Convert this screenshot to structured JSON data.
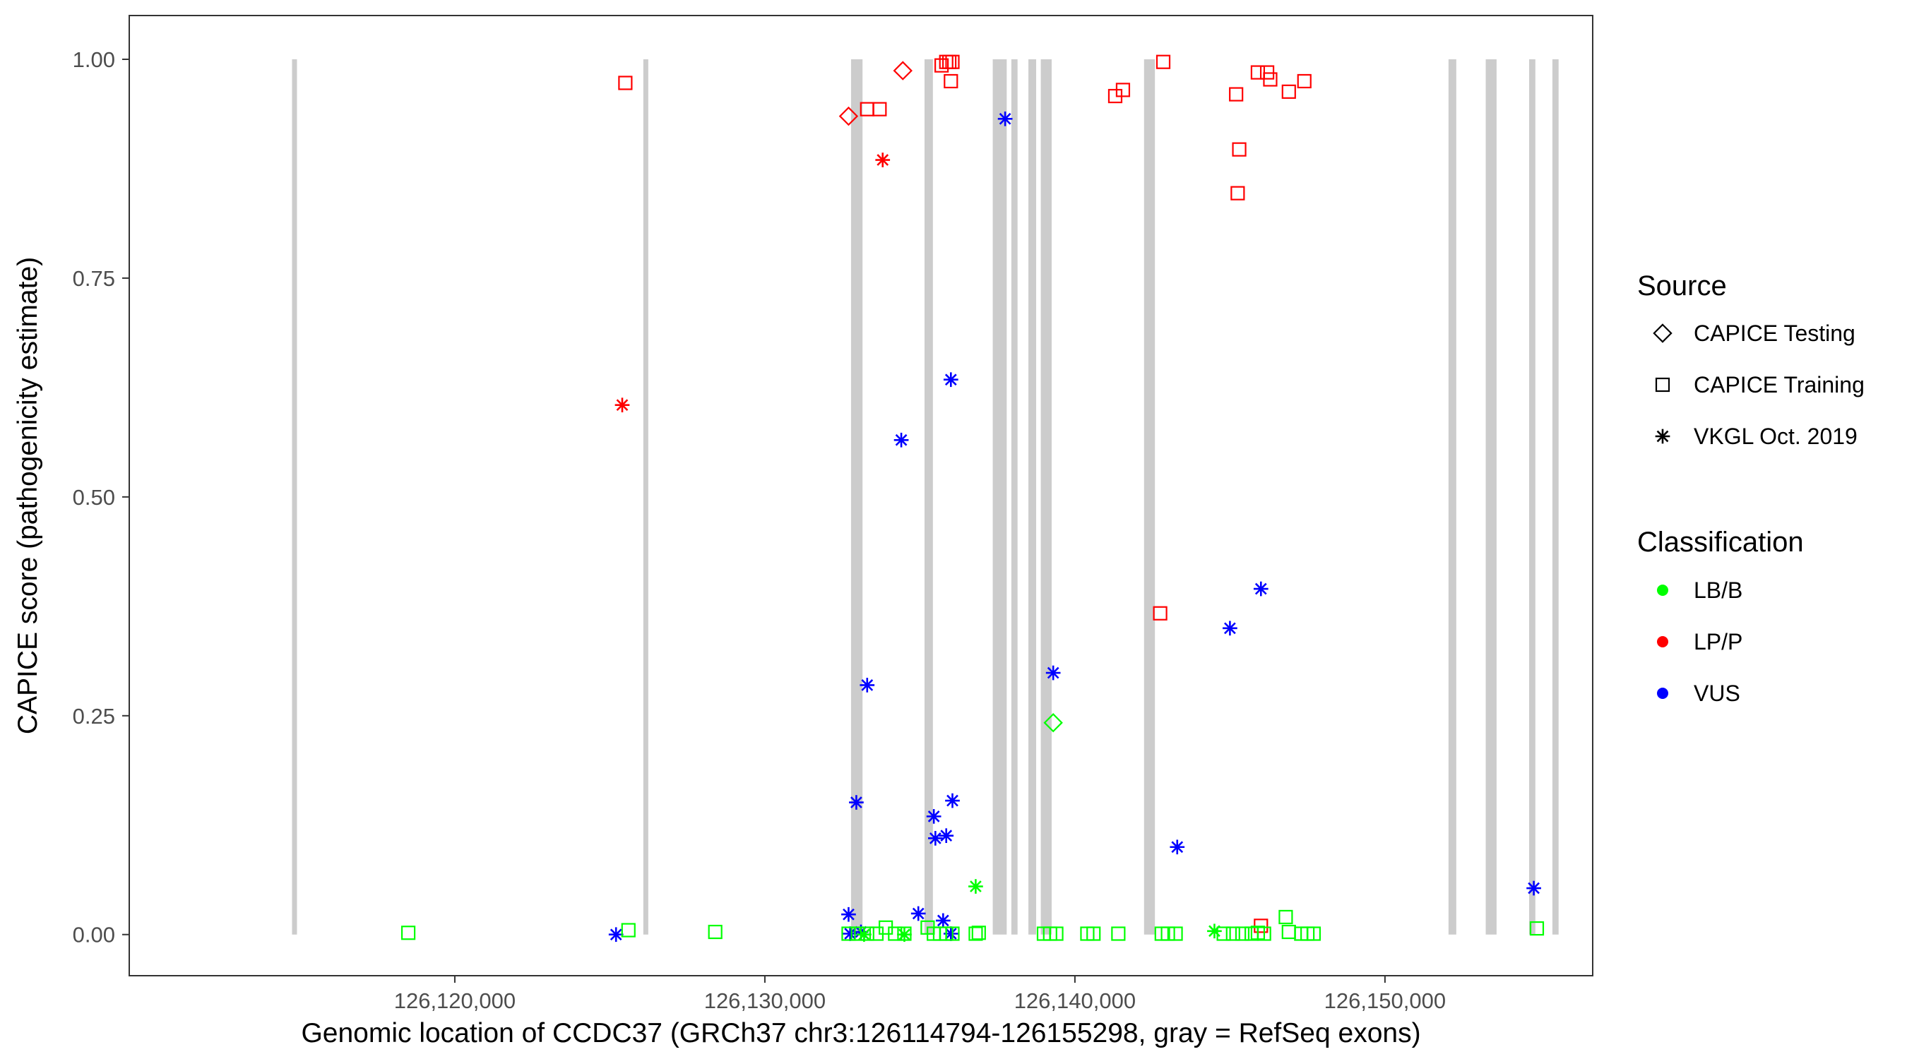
{
  "chart_data": {
    "type": "scatter",
    "xlabel": "Genomic location of CCDC37 (GRCh37 chr3:126114794-126155298, gray = RefSeq exons)",
    "ylabel": "CAPICE score (pathogenicity estimate)",
    "xlim": [
      126109500,
      126156700
    ],
    "ylim": [
      -0.047,
      1.05
    ],
    "x_ticks": [
      126120000,
      126130000,
      126140000,
      126150000
    ],
    "x_tick_labels": [
      "126,120,000",
      "126,130,000",
      "126,140,000",
      "126,150,000"
    ],
    "y_ticks": [
      0,
      0.25,
      0.5,
      0.75,
      1.0
    ],
    "y_tick_labels": [
      "0.00",
      "0.25",
      "0.50",
      "0.75",
      "1.00"
    ],
    "grid": false,
    "exons": [
      [
        126114750,
        126114900
      ],
      [
        126126080,
        126126230
      ],
      [
        126132780,
        126133150
      ],
      [
        126135150,
        126135420
      ],
      [
        126137350,
        126137800
      ],
      [
        126137950,
        126138150
      ],
      [
        126138500,
        126138750
      ],
      [
        126138900,
        126139250
      ],
      [
        126142230,
        126142580
      ],
      [
        126152050,
        126152300
      ],
      [
        126153250,
        126153600
      ],
      [
        126154650,
        126154850
      ],
      [
        126155400,
        126155600
      ]
    ],
    "legend": {
      "placement": "right",
      "source_title": "Source",
      "source_items": [
        {
          "label": "CAPICE Testing",
          "shape": "diamond"
        },
        {
          "label": "CAPICE Training",
          "shape": "square"
        },
        {
          "label": "VKGL Oct. 2019",
          "shape": "asterisk"
        }
      ],
      "class_title": "Classification",
      "class_items": [
        {
          "label": "LB/B",
          "color": "#00ff00"
        },
        {
          "label": "LP/P",
          "color": "#ff0000"
        },
        {
          "label": "VUS",
          "color": "#0000ff"
        }
      ]
    },
    "colors": {
      "LB/B": "#00ff00",
      "LP/P": "#ff0000",
      "VUS": "#0000ff",
      "exon": "#cccccc"
    },
    "series": [
      {
        "classification": "LP/P",
        "source": "CAPICE Training",
        "points": [
          [
            126125500,
            0.973
          ],
          [
            126133300,
            0.943
          ],
          [
            126133700,
            0.943
          ],
          [
            126135700,
            0.993
          ],
          [
            126135850,
            0.997
          ],
          [
            126135950,
            0.997
          ],
          [
            126136050,
            0.997
          ],
          [
            126136000,
            0.975
          ],
          [
            126141300,
            0.958
          ],
          [
            126141550,
            0.965
          ],
          [
            126142850,
            0.997
          ],
          [
            126145200,
            0.96
          ],
          [
            126145300,
            0.897
          ],
          [
            126145250,
            0.847
          ],
          [
            126145900,
            0.985
          ],
          [
            126146200,
            0.985
          ],
          [
            126146300,
            0.977
          ],
          [
            126146900,
            0.963
          ],
          [
            126147400,
            0.975
          ],
          [
            126142750,
            0.367
          ],
          [
            126146000,
            0.01
          ]
        ]
      },
      {
        "classification": "LP/P",
        "source": "CAPICE Testing",
        "points": [
          [
            126132700,
            0.935
          ],
          [
            126134450,
            0.987
          ]
        ]
      },
      {
        "classification": "LP/P",
        "source": "VKGL Oct. 2019",
        "points": [
          [
            126125400,
            0.605
          ],
          [
            126133800,
            0.885
          ]
        ]
      },
      {
        "classification": "VUS",
        "source": "VKGL Oct. 2019",
        "points": [
          [
            126137750,
            0.932
          ],
          [
            126136000,
            0.634
          ],
          [
            126134400,
            0.565
          ],
          [
            126146000,
            0.395
          ],
          [
            126145000,
            0.35
          ],
          [
            126139300,
            0.299
          ],
          [
            126133300,
            0.285
          ],
          [
            126136050,
            0.153
          ],
          [
            126132950,
            0.151
          ],
          [
            126135450,
            0.135
          ],
          [
            126135850,
            0.113
          ],
          [
            126135500,
            0.11
          ],
          [
            126143300,
            0.1
          ],
          [
            126154800,
            0.053
          ],
          [
            126132700,
            0.023
          ],
          [
            126134950,
            0.024
          ],
          [
            126135750,
            0.016
          ],
          [
            126125200,
            0.0
          ],
          [
            126133100,
            0.003
          ],
          [
            126132750,
            0.001
          ],
          [
            126136000,
            0.001
          ]
        ]
      },
      {
        "classification": "LB/B",
        "source": "CAPICE Testing",
        "points": [
          [
            126139300,
            0.242
          ]
        ]
      },
      {
        "classification": "LB/B",
        "source": "VKGL Oct. 2019",
        "points": [
          [
            126136800,
            0.055
          ],
          [
            126144500,
            0.004
          ],
          [
            126134500,
            0.0
          ],
          [
            126133200,
            0.0
          ]
        ]
      },
      {
        "classification": "LB/B",
        "source": "CAPICE Training",
        "points": [
          [
            126118500,
            0.002
          ],
          [
            126125600,
            0.005
          ],
          [
            126128400,
            0.003
          ],
          [
            126132700,
            0.001
          ],
          [
            126133000,
            0.001
          ],
          [
            126133300,
            0.001
          ],
          [
            126133600,
            0.001
          ],
          [
            126133900,
            0.008
          ],
          [
            126134200,
            0.001
          ],
          [
            126134500,
            0.001
          ],
          [
            126135250,
            0.008
          ],
          [
            126135450,
            0.001
          ],
          [
            126135650,
            0.001
          ],
          [
            126135850,
            0.001
          ],
          [
            126136050,
            0.001
          ],
          [
            126136800,
            0.001
          ],
          [
            126136900,
            0.002
          ],
          [
            126139000,
            0.001
          ],
          [
            126139200,
            0.001
          ],
          [
            126139400,
            0.001
          ],
          [
            126140400,
            0.001
          ],
          [
            126140600,
            0.001
          ],
          [
            126141400,
            0.001
          ],
          [
            126142800,
            0.001
          ],
          [
            126143000,
            0.001
          ],
          [
            126143250,
            0.001
          ],
          [
            126144800,
            0.001
          ],
          [
            126145100,
            0.001
          ],
          [
            126145400,
            0.001
          ],
          [
            126145700,
            0.001
          ],
          [
            126145900,
            0.002
          ],
          [
            126146100,
            0.001
          ],
          [
            126146800,
            0.02
          ],
          [
            126146900,
            0.003
          ],
          [
            126147300,
            0.001
          ],
          [
            126147500,
            0.001
          ],
          [
            126147700,
            0.001
          ],
          [
            126154900,
            0.007
          ]
        ]
      }
    ]
  }
}
